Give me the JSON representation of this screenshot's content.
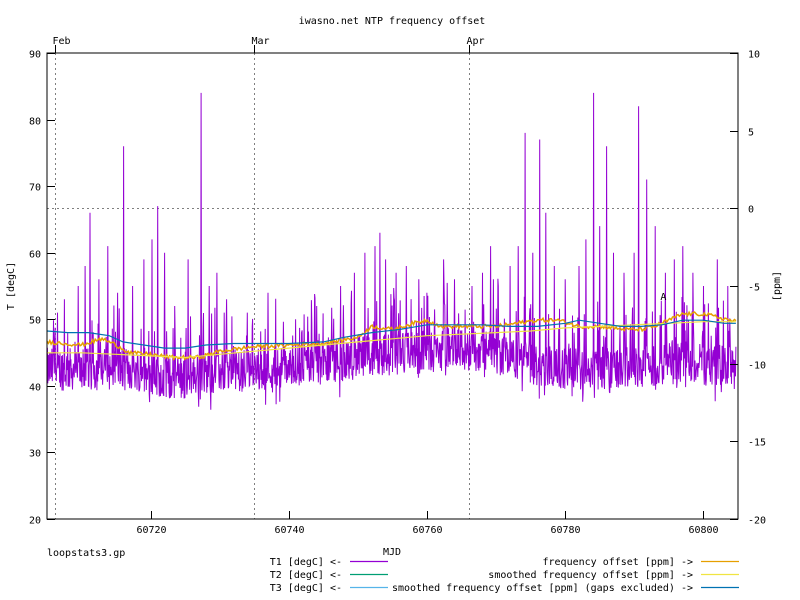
{
  "chart_data": {
    "type": "line",
    "title": "iwasno.net NTP frequency offset",
    "xlabel": "MJD",
    "ylabel_left": "T [degC]",
    "ylabel_right": "[ppm]",
    "xlim": [
      60705,
      60805
    ],
    "ylim_left": [
      20,
      90
    ],
    "ylim_right": [
      -20,
      10
    ],
    "x_ticks": [
      60720,
      60740,
      60760,
      60780,
      60800
    ],
    "y_left_ticks": [
      20,
      30,
      40,
      50,
      60,
      70,
      80,
      90
    ],
    "y_right_ticks": [
      -20,
      -15,
      -10,
      -5,
      0,
      5,
      10
    ],
    "month_markers": [
      {
        "label": "Feb",
        "x": 60706.2
      },
      {
        "label": "Mar",
        "x": 60735.0
      },
      {
        "label": "Apr",
        "x": 60766.0
      }
    ],
    "zero_line_ppm": 0,
    "footer_text": "loopstats3.gp",
    "cursor_label": "A",
    "cursor_point": {
      "x": 60794.2,
      "ppm": -5.9
    },
    "legend": [
      {
        "label": "T1 [degC] <-",
        "color": "#9400d3"
      },
      {
        "label": "T2 [degC] <-",
        "color": "#009e73"
      },
      {
        "label": "T3 [degC] <-",
        "color": "#56b4e9"
      },
      {
        "label": "frequency offset [ppm] ->",
        "color": "#e69f00"
      },
      {
        "label": "smoothed frequency offset [ppm] ->",
        "color": "#f0e442"
      },
      {
        "label": "smoothed frequency offset [ppm] (gaps excluded) ->",
        "color": "#0072b2"
      }
    ],
    "series": [
      {
        "id": "T1",
        "axis": "left",
        "style": "noisy",
        "color": "#9400d3",
        "x_start": 60705,
        "x_end": 60804.7,
        "baseline": [
          [
            60705,
            42.5
          ],
          [
            60712,
            42.5
          ],
          [
            60718,
            42.5
          ],
          [
            60723,
            41.0
          ],
          [
            60728,
            42.0
          ],
          [
            60735,
            42.5
          ],
          [
            60745,
            43.5
          ],
          [
            60752,
            44.5
          ],
          [
            60758,
            45.0
          ],
          [
            60764,
            45.5
          ],
          [
            60770,
            45.0
          ],
          [
            60776,
            43.0
          ],
          [
            60782,
            42.5
          ],
          [
            60790,
            43.0
          ],
          [
            60796,
            43.5
          ],
          [
            60804.7,
            43.0
          ]
        ],
        "spikes": [
          [
            60706.5,
            51
          ],
          [
            60707.5,
            53
          ],
          [
            60709.5,
            55
          ],
          [
            60710.5,
            58
          ],
          [
            60711.2,
            66
          ],
          [
            60712.5,
            56
          ],
          [
            60713.8,
            61
          ],
          [
            60715.2,
            54
          ],
          [
            60716.1,
            76
          ],
          [
            60717.4,
            55
          ],
          [
            60719.0,
            59
          ],
          [
            60720.2,
            62
          ],
          [
            60721.0,
            67
          ],
          [
            60722.0,
            60
          ],
          [
            60723.5,
            52
          ],
          [
            60725.4,
            59
          ],
          [
            60727.3,
            84
          ],
          [
            60728.5,
            55
          ],
          [
            60729.6,
            57
          ],
          [
            60731.0,
            53
          ],
          [
            60734.0,
            51
          ],
          [
            60737.0,
            54
          ],
          [
            60741.0,
            50
          ],
          [
            60744.0,
            52
          ],
          [
            60747.5,
            55
          ],
          [
            60749.5,
            57
          ],
          [
            60751.0,
            60
          ],
          [
            60752.5,
            61
          ],
          [
            60753.2,
            63
          ],
          [
            60754.0,
            59
          ],
          [
            60755.5,
            57
          ],
          [
            60757.0,
            58
          ],
          [
            60758.8,
            56
          ],
          [
            60760.0,
            54
          ],
          [
            60762.4,
            59
          ],
          [
            60764.0,
            56
          ],
          [
            60766.5,
            55
          ],
          [
            60768.0,
            57
          ],
          [
            60769.2,
            61
          ],
          [
            60770.3,
            55
          ],
          [
            60772.0,
            58
          ],
          [
            60773.2,
            61
          ],
          [
            60774.2,
            78
          ],
          [
            60775.3,
            60
          ],
          [
            60776.3,
            77
          ],
          [
            60777.2,
            66
          ],
          [
            60778.4,
            58
          ],
          [
            60780.0,
            56
          ],
          [
            60782.0,
            58
          ],
          [
            60783.0,
            62
          ],
          [
            60784.1,
            84
          ],
          [
            60785.0,
            64
          ],
          [
            60786.0,
            76
          ],
          [
            60787.0,
            60
          ],
          [
            60788.5,
            57
          ],
          [
            60790.0,
            60
          ],
          [
            60790.6,
            82
          ],
          [
            60791.8,
            71
          ],
          [
            60793.0,
            64
          ],
          [
            60794.5,
            57
          ],
          [
            60795.8,
            59
          ],
          [
            60797.0,
            61
          ],
          [
            60798.5,
            57
          ],
          [
            60800.0,
            55
          ],
          [
            60802.0,
            59
          ],
          [
            60803.5,
            55
          ]
        ]
      },
      {
        "id": "freq",
        "axis": "right",
        "style": "jagged",
        "color": "#e69f00",
        "points": [
          [
            60705,
            -8.6
          ],
          [
            60710,
            -8.8
          ],
          [
            60713,
            -8.4
          ],
          [
            60715,
            -8.8
          ],
          [
            60717,
            -9.3
          ],
          [
            60720,
            -9.4
          ],
          [
            60723,
            -9.6
          ],
          [
            60727,
            -9.6
          ],
          [
            60730,
            -9.2
          ],
          [
            60735,
            -8.9
          ],
          [
            60740,
            -8.8
          ],
          [
            60745,
            -8.7
          ],
          [
            60750,
            -8.3
          ],
          [
            60752,
            -7.6
          ],
          [
            60755,
            -7.8
          ],
          [
            60758,
            -7.4
          ],
          [
            60760,
            -7.2
          ],
          [
            60762,
            -7.6
          ],
          [
            60765,
            -7.6
          ],
          [
            60768,
            -7.6
          ],
          [
            60770,
            -7.6
          ],
          [
            60773,
            -7.4
          ],
          [
            60776,
            -7.2
          ],
          [
            60779,
            -7.2
          ],
          [
            60782,
            -7.6
          ],
          [
            60785,
            -7.6
          ],
          [
            60789,
            -7.8
          ],
          [
            60791,
            -7.8
          ],
          [
            60793,
            -7.6
          ],
          [
            60795,
            -7.2
          ],
          [
            60797,
            -6.8
          ],
          [
            60800,
            -6.8
          ],
          [
            60802,
            -7.0
          ],
          [
            60804.7,
            -7.3
          ]
        ]
      },
      {
        "id": "smooth",
        "axis": "right",
        "style": "smooth",
        "color": "#f0e442",
        "points": [
          [
            60705,
            -9.3
          ],
          [
            60710,
            -9.3
          ],
          [
            60715,
            -9.4
          ],
          [
            60720,
            -9.5
          ],
          [
            60725,
            -9.6
          ],
          [
            60730,
            -9.4
          ],
          [
            60735,
            -9.2
          ],
          [
            60740,
            -9.0
          ],
          [
            60745,
            -8.8
          ],
          [
            60750,
            -8.6
          ],
          [
            60755,
            -8.4
          ],
          [
            60760,
            -8.2
          ],
          [
            60765,
            -8.1
          ],
          [
            60770,
            -8.0
          ],
          [
            60775,
            -7.9
          ],
          [
            60780,
            -7.7
          ],
          [
            60785,
            -7.6
          ],
          [
            60790,
            -7.5
          ],
          [
            60795,
            -7.4
          ],
          [
            60800,
            -7.3
          ],
          [
            60804.7,
            -7.3
          ]
        ]
      },
      {
        "id": "smooth_gaps",
        "axis": "right",
        "style": "smooth",
        "color": "#0072b2",
        "points": [
          [
            60705,
            -7.9
          ],
          [
            60708,
            -8.0
          ],
          [
            60711,
            -8.0
          ],
          [
            60714,
            -8.2
          ],
          [
            60716,
            -8.6
          ],
          [
            60719,
            -8.8
          ],
          [
            60722,
            -9.0
          ],
          [
            60725,
            -9.0
          ],
          [
            60728,
            -8.8
          ],
          [
            60732,
            -8.7
          ],
          [
            60736,
            -8.7
          ],
          [
            60740,
            -8.7
          ],
          [
            60745,
            -8.6
          ],
          [
            60748,
            -8.3
          ],
          [
            60752,
            -8.0
          ],
          [
            60756,
            -7.8
          ],
          [
            60760,
            -7.5
          ],
          [
            60764,
            -7.5
          ],
          [
            60768,
            -7.5
          ],
          [
            60772,
            -7.6
          ],
          [
            60776,
            -7.6
          ],
          [
            60780,
            -7.4
          ],
          [
            60782,
            -7.2
          ],
          [
            60785,
            -7.4
          ],
          [
            60788,
            -7.6
          ],
          [
            60791,
            -7.6
          ],
          [
            60794,
            -7.5
          ],
          [
            60797,
            -7.2
          ],
          [
            60800,
            -7.2
          ],
          [
            60803,
            -7.4
          ],
          [
            60804.7,
            -7.4
          ]
        ]
      },
      {
        "id": "T2",
        "axis": "left",
        "style": "hidden",
        "color": "#009e73",
        "points": []
      },
      {
        "id": "T3",
        "axis": "left",
        "style": "hidden",
        "color": "#56b4e9",
        "points": []
      }
    ]
  }
}
